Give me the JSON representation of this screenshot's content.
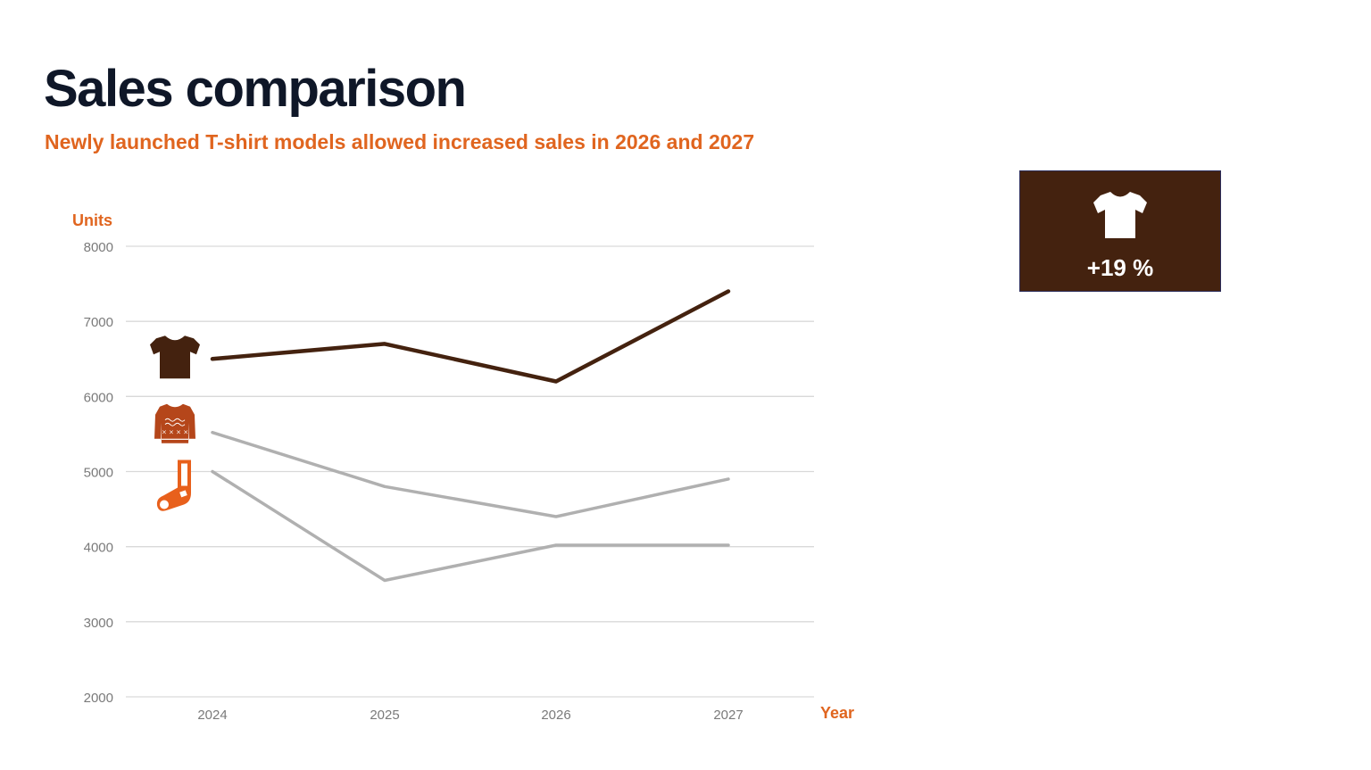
{
  "header": {
    "title": "Sales comparison",
    "subtitle": "Newly launched T-shirt models allowed increased sales in 2026 and 2027"
  },
  "kpi": {
    "value": "+19 %",
    "icon": "tshirt-icon",
    "background": "#44220f"
  },
  "chart_data": {
    "type": "line",
    "ylabel": "Units",
    "xlabel": "Year",
    "ylim": [
      2000,
      8000
    ],
    "yticks": [
      2000,
      3000,
      4000,
      5000,
      6000,
      7000,
      8000
    ],
    "x": [
      "2024",
      "2025",
      "2026",
      "2027"
    ],
    "grid": "horizontal",
    "series": [
      {
        "icon": "tshirt-icon",
        "color": "#44220f",
        "values": [
          6500,
          6700,
          6200,
          7400
        ]
      },
      {
        "icon": "sweater-icon",
        "color": "#b0b0b0",
        "values": [
          5520,
          4800,
          4400,
          4900
        ]
      },
      {
        "icon": "sock-icon",
        "color": "#b0b0b0",
        "values": [
          5000,
          3550,
          4020,
          4020
        ]
      }
    ]
  },
  "colors": {
    "accent": "#e0651f",
    "primary": "#44220f",
    "muted": "#b0b0b0",
    "title": "#0f1728"
  }
}
